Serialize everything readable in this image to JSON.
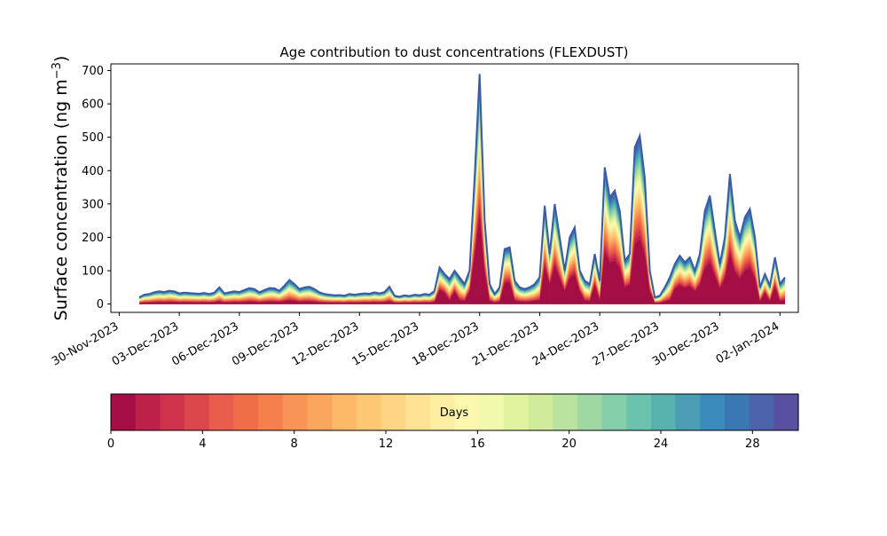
{
  "chart_data": {
    "type": "area",
    "title": "Age contribution to dust concentrations (FLEXDUST)",
    "ylabel_main": "Surface concentration (ng m",
    "ylabel_exp": "−3",
    "ylabel_close": ")",
    "xlabel": "",
    "ylim": [
      -25,
      720
    ],
    "xlim": [
      "2023-11-29T14:00",
      "2024-01-02T22:00"
    ],
    "y_ticks": [
      0,
      100,
      200,
      300,
      400,
      500,
      600,
      700
    ],
    "x_ticks": [
      {
        "date": "2023-11-30",
        "label": "30-Nov-2023"
      },
      {
        "date": "2023-12-03",
        "label": "03-Dec-2023"
      },
      {
        "date": "2023-12-06",
        "label": "06-Dec-2023"
      },
      {
        "date": "2023-12-09",
        "label": "09-Dec-2023"
      },
      {
        "date": "2023-12-12",
        "label": "12-Dec-2023"
      },
      {
        "date": "2023-12-15",
        "label": "15-Dec-2023"
      },
      {
        "date": "2023-12-18",
        "label": "18-Dec-2023"
      },
      {
        "date": "2023-12-21",
        "label": "21-Dec-2023"
      },
      {
        "date": "2023-12-24",
        "label": "24-Dec-2023"
      },
      {
        "date": "2023-12-27",
        "label": "27-Dec-2023"
      },
      {
        "date": "2023-12-30",
        "label": "30-Dec-2023"
      },
      {
        "date": "2024-01-02",
        "label": "02-Jan-2024"
      }
    ],
    "series": [
      {
        "description": "total concentration (all ages 0-30 days)",
        "color": "#3b5ba8",
        "points": [
          [
            "2023-12-01T00:00",
            20
          ],
          [
            "2023-12-01T06:00",
            28
          ],
          [
            "2023-12-01T12:00",
            30
          ],
          [
            "2023-12-01T18:00",
            35
          ],
          [
            "2023-12-02T00:00",
            38
          ],
          [
            "2023-12-02T06:00",
            36
          ],
          [
            "2023-12-02T12:00",
            40
          ],
          [
            "2023-12-02T18:00",
            38
          ],
          [
            "2023-12-03T00:00",
            32
          ],
          [
            "2023-12-03T06:00",
            34
          ],
          [
            "2023-12-03T12:00",
            33
          ],
          [
            "2023-12-03T18:00",
            32
          ],
          [
            "2023-12-04T00:00",
            31
          ],
          [
            "2023-12-04T06:00",
            33
          ],
          [
            "2023-12-04T12:00",
            30
          ],
          [
            "2023-12-04T18:00",
            34
          ],
          [
            "2023-12-05T00:00",
            50
          ],
          [
            "2023-12-05T06:00",
            32
          ],
          [
            "2023-12-05T12:00",
            35
          ],
          [
            "2023-12-05T18:00",
            38
          ],
          [
            "2023-12-06T00:00",
            36
          ],
          [
            "2023-12-06T06:00",
            42
          ],
          [
            "2023-12-06T12:00",
            48
          ],
          [
            "2023-12-06T18:00",
            45
          ],
          [
            "2023-12-07T00:00",
            35
          ],
          [
            "2023-12-07T06:00",
            42
          ],
          [
            "2023-12-07T12:00",
            48
          ],
          [
            "2023-12-07T18:00",
            47
          ],
          [
            "2023-12-08T00:00",
            40
          ],
          [
            "2023-12-08T06:00",
            55
          ],
          [
            "2023-12-08T12:00",
            72
          ],
          [
            "2023-12-08T18:00",
            60
          ],
          [
            "2023-12-09T00:00",
            45
          ],
          [
            "2023-12-09T06:00",
            50
          ],
          [
            "2023-12-09T12:00",
            52
          ],
          [
            "2023-12-09T18:00",
            45
          ],
          [
            "2023-12-10T00:00",
            35
          ],
          [
            "2023-12-10T06:00",
            30
          ],
          [
            "2023-12-10T12:00",
            28
          ],
          [
            "2023-12-10T18:00",
            26
          ],
          [
            "2023-12-11T00:00",
            27
          ],
          [
            "2023-12-11T06:00",
            25
          ],
          [
            "2023-12-11T12:00",
            30
          ],
          [
            "2023-12-11T18:00",
            28
          ],
          [
            "2023-12-12T00:00",
            30
          ],
          [
            "2023-12-12T06:00",
            32
          ],
          [
            "2023-12-12T12:00",
            31
          ],
          [
            "2023-12-12T18:00",
            35
          ],
          [
            "2023-12-13T00:00",
            32
          ],
          [
            "2023-12-13T06:00",
            36
          ],
          [
            "2023-12-13T12:00",
            52
          ],
          [
            "2023-12-13T18:00",
            25
          ],
          [
            "2023-12-14T00:00",
            22
          ],
          [
            "2023-12-14T06:00",
            26
          ],
          [
            "2023-12-14T12:00",
            24
          ],
          [
            "2023-12-14T18:00",
            28
          ],
          [
            "2023-12-15T00:00",
            26
          ],
          [
            "2023-12-15T06:00",
            30
          ],
          [
            "2023-12-15T12:00",
            28
          ],
          [
            "2023-12-15T18:00",
            40
          ],
          [
            "2023-12-16T00:00",
            110
          ],
          [
            "2023-12-16T06:00",
            90
          ],
          [
            "2023-12-16T12:00",
            75
          ],
          [
            "2023-12-16T18:00",
            100
          ],
          [
            "2023-12-17T00:00",
            80
          ],
          [
            "2023-12-17T06:00",
            60
          ],
          [
            "2023-12-17T12:00",
            100
          ],
          [
            "2023-12-17T18:00",
            380
          ],
          [
            "2023-12-18T00:00",
            690
          ],
          [
            "2023-12-18T06:00",
            250
          ],
          [
            "2023-12-18T12:00",
            60
          ],
          [
            "2023-12-18T18:00",
            30
          ],
          [
            "2023-12-19T00:00",
            50
          ],
          [
            "2023-12-19T06:00",
            165
          ],
          [
            "2023-12-19T12:00",
            170
          ],
          [
            "2023-12-19T18:00",
            70
          ],
          [
            "2023-12-20T00:00",
            50
          ],
          [
            "2023-12-20T06:00",
            45
          ],
          [
            "2023-12-20T12:00",
            50
          ],
          [
            "2023-12-20T18:00",
            60
          ],
          [
            "2023-12-21T00:00",
            80
          ],
          [
            "2023-12-21T06:00",
            295
          ],
          [
            "2023-12-21T12:00",
            150
          ],
          [
            "2023-12-21T18:00",
            300
          ],
          [
            "2023-12-22T00:00",
            200
          ],
          [
            "2023-12-22T06:00",
            100
          ],
          [
            "2023-12-22T12:00",
            200
          ],
          [
            "2023-12-22T18:00",
            230
          ],
          [
            "2023-12-23T00:00",
            100
          ],
          [
            "2023-12-23T06:00",
            70
          ],
          [
            "2023-12-23T12:00",
            60
          ],
          [
            "2023-12-23T18:00",
            150
          ],
          [
            "2023-12-24T00:00",
            70
          ],
          [
            "2023-12-24T06:00",
            410
          ],
          [
            "2023-12-24T12:00",
            320
          ],
          [
            "2023-12-24T18:00",
            340
          ],
          [
            "2023-12-25T00:00",
            280
          ],
          [
            "2023-12-25T06:00",
            130
          ],
          [
            "2023-12-25T12:00",
            150
          ],
          [
            "2023-12-25T18:00",
            470
          ],
          [
            "2023-12-26T00:00",
            505
          ],
          [
            "2023-12-26T06:00",
            380
          ],
          [
            "2023-12-26T12:00",
            100
          ],
          [
            "2023-12-26T18:00",
            20
          ],
          [
            "2023-12-27T00:00",
            25
          ],
          [
            "2023-12-27T06:00",
            50
          ],
          [
            "2023-12-27T12:00",
            80
          ],
          [
            "2023-12-27T18:00",
            120
          ],
          [
            "2023-12-28T00:00",
            145
          ],
          [
            "2023-12-28T06:00",
            125
          ],
          [
            "2023-12-28T12:00",
            140
          ],
          [
            "2023-12-28T18:00",
            100
          ],
          [
            "2023-12-29T00:00",
            150
          ],
          [
            "2023-12-29T06:00",
            280
          ],
          [
            "2023-12-29T12:00",
            325
          ],
          [
            "2023-12-29T18:00",
            220
          ],
          [
            "2023-12-30T00:00",
            120
          ],
          [
            "2023-12-30T06:00",
            200
          ],
          [
            "2023-12-30T12:00",
            390
          ],
          [
            "2023-12-30T18:00",
            250
          ],
          [
            "2023-12-31T00:00",
            200
          ],
          [
            "2023-12-31T06:00",
            260
          ],
          [
            "2023-12-31T12:00",
            285
          ],
          [
            "2023-12-31T18:00",
            200
          ],
          [
            "2024-01-01T00:00",
            50
          ],
          [
            "2024-01-01T06:00",
            90
          ],
          [
            "2024-01-01T12:00",
            55
          ],
          [
            "2024-01-01T18:00",
            140
          ],
          [
            "2024-01-02T00:00",
            60
          ],
          [
            "2024-01-02T06:00",
            80
          ]
        ]
      }
    ],
    "colorbar": {
      "label": "Days",
      "range": [
        0,
        30
      ],
      "ticks": [
        0,
        4,
        8,
        12,
        16,
        20,
        24,
        28
      ],
      "colors": [
        "#a50e45",
        "#bd2048",
        "#cf334b",
        "#dc474c",
        "#e85d4b",
        "#ef6e48",
        "#f57f4d",
        "#f89455",
        "#fba65f",
        "#fdb868",
        "#fec774",
        "#fed583",
        "#fee293",
        "#feeea1",
        "#fbf8ae",
        "#f1f9ac",
        "#e2f39f",
        "#d0ec9b",
        "#b9e39e",
        "#9fd8a3",
        "#84ceaa",
        "#6bc3ad",
        "#57b1ad",
        "#4a9db4",
        "#3a8bbc",
        "#3a78b3",
        "#4a63aa",
        "#5a50a2"
      ]
    }
  }
}
